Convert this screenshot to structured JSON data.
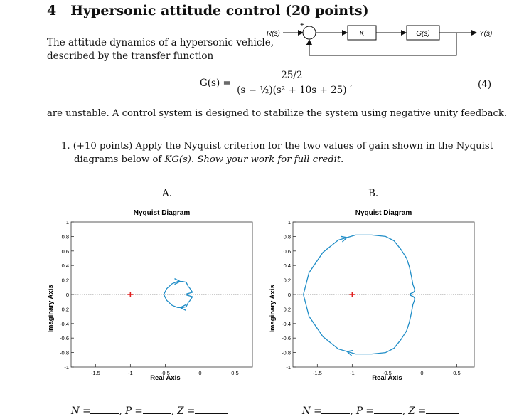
{
  "problem": {
    "number": "4",
    "title": "Hypersonic attitude control (20 points)",
    "intro_line1": "The attitude dynamics of a hypersonic vehicle,",
    "intro_line2": "described by the transfer function",
    "eq_lhs": "G(s) =",
    "eq_num": "25/2",
    "eq_den": "(s − ½)(s² + 10s + 25)",
    "eq_tail": ",",
    "eq_number": "(4)",
    "sentence": "are unstable. A control system is designed to stabilize the system using negative unity feedback."
  },
  "block_diagram": {
    "input": "R(s)",
    "plus": "+",
    "minus": "−",
    "block1": "K",
    "block2": "G(s)",
    "output": "Y(s)"
  },
  "question": {
    "line1": "1.  (+10 points) Apply the Nyquist criterion for the two values of gain shown in the Nyquist",
    "line2_a": "diagrams below of ",
    "line2_b": "KG(s)",
    "line2_c": ". Show your work for full credit."
  },
  "plots": [
    {
      "label": "A.",
      "title": "Nyquist Diagram",
      "xlabel": "Real Axis",
      "ylabel": "Imaginary Axis",
      "xticks": [
        "-1.5",
        "-1",
        "-0.5",
        "0",
        "0.5"
      ],
      "yticks": [
        "1",
        "0.8",
        "0.6",
        "0.4",
        "0.2",
        "0",
        "0.2",
        "-0.4",
        "-0.6",
        "-0.8",
        "-1"
      ],
      "answers": {
        "N": "N =",
        "P": ", P =",
        "Z": ", Z ="
      }
    },
    {
      "label": "B.",
      "title": "Nyquist Diagram",
      "xlabel": "Real Axis",
      "ylabel": "Imaginary Axis",
      "xticks": [
        "-1.5",
        "-1",
        "-0.5",
        "0",
        "0.5"
      ],
      "yticks": [
        "1",
        "0.8",
        "0.6",
        "0.4",
        "0.2",
        "0",
        "0.2",
        "-0.4",
        "-0.6",
        "-0.8",
        "-1"
      ],
      "answers": {
        "N": "N =",
        "P": ", P =",
        "Z": ", Z ="
      }
    }
  ],
  "chart_data": [
    {
      "type": "line",
      "title": "Nyquist Diagram",
      "xlabel": "Real Axis",
      "ylabel": "Imaginary Axis",
      "xlim": [
        -1.85,
        0.75
      ],
      "ylim": [
        -1,
        1
      ],
      "critical_point": [
        -1,
        0
      ],
      "colors": {
        "curve": "#1f8dc7",
        "critical": "#e02020"
      },
      "series": [
        {
          "x": [
            -0.52,
            -0.48,
            -0.4,
            -0.32,
            -0.25,
            -0.2,
            -0.19,
            -0.18,
            -0.17,
            -0.15,
            -0.13,
            -0.11,
            -0.15,
            -0.19,
            -0.18,
            -0.19,
            -0.15,
            -0.11,
            -0.13,
            -0.15,
            -0.17,
            -0.18,
            -0.19,
            -0.2,
            -0.25,
            -0.32,
            -0.4,
            -0.48,
            -0.52
          ],
          "y": [
            0,
            0.08,
            0.15,
            0.18,
            0.18,
            0.17,
            0.15,
            0.13,
            0.11,
            0.09,
            0.06,
            0.03,
            0.02,
            0.01,
            0,
            -0.01,
            -0.02,
            -0.03,
            -0.06,
            -0.09,
            -0.11,
            -0.13,
            -0.15,
            -0.17,
            -0.18,
            -0.18,
            -0.15,
            -0.08,
            0
          ]
        }
      ]
    },
    {
      "type": "line",
      "title": "Nyquist Diagram",
      "xlabel": "Real Axis",
      "ylabel": "Imaginary Axis",
      "xlim": [
        -1.85,
        0.75
      ],
      "ylim": [
        -1,
        1
      ],
      "critical_point": [
        -1,
        0
      ],
      "colors": {
        "curve": "#1f8dc7",
        "critical": "#e02020"
      },
      "series": [
        {
          "x": [
            -1.7,
            -1.62,
            -1.42,
            -1.2,
            -0.95,
            -0.72,
            -0.52,
            -0.4,
            -0.3,
            -0.22,
            -0.18,
            -0.15,
            -0.13,
            -0.1,
            -0.12,
            -0.17,
            -0.16,
            -0.17,
            -0.12,
            -0.1,
            -0.13,
            -0.15,
            -0.18,
            -0.22,
            -0.3,
            -0.4,
            -0.52,
            -0.72,
            -0.95,
            -1.2,
            -1.42,
            -1.62,
            -1.7
          ],
          "y": [
            0,
            0.3,
            0.58,
            0.75,
            0.82,
            0.82,
            0.8,
            0.74,
            0.62,
            0.5,
            0.38,
            0.25,
            0.14,
            0.06,
            0.03,
            0.01,
            0,
            -0.01,
            -0.03,
            -0.06,
            -0.14,
            -0.25,
            -0.38,
            -0.5,
            -0.62,
            -0.74,
            -0.8,
            -0.82,
            -0.82,
            -0.75,
            -0.58,
            -0.3,
            0
          ]
        }
      ]
    }
  ]
}
